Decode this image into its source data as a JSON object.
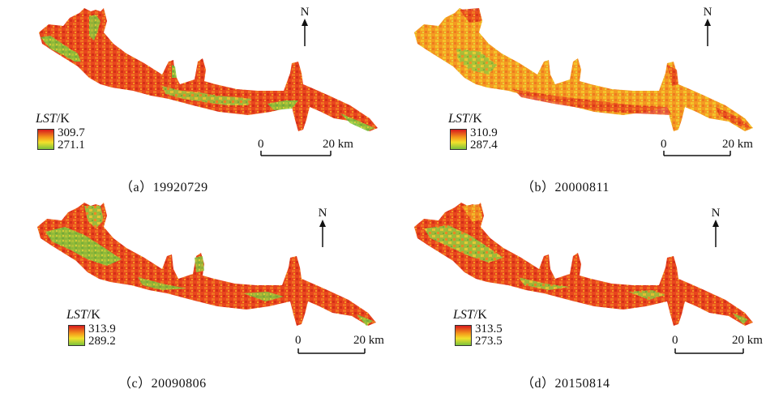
{
  "legend_title_italic": "LST",
  "legend_title_unit": "/K",
  "north_label": "N",
  "scale": {
    "zero": "0",
    "distance": "20 km"
  },
  "colors": {
    "hot": "#e8361c",
    "warm": "#f7a21b",
    "mid": "#f2dc2a",
    "cool": "#7ec23b"
  },
  "panels": [
    {
      "id": "a",
      "caption_letter": "（a）",
      "date": "19920729",
      "lst_max": "309.7",
      "lst_min": "271.1"
    },
    {
      "id": "b",
      "caption_letter": "（b）",
      "date": "20000811",
      "lst_max": "310.9",
      "lst_min": "287.4"
    },
    {
      "id": "c",
      "caption_letter": "（c）",
      "date": "20090806",
      "lst_max": "313.9",
      "lst_min": "289.2"
    },
    {
      "id": "d",
      "caption_letter": "（d）",
      "date": "20150814",
      "lst_max": "313.5",
      "lst_min": "273.5"
    }
  ]
}
